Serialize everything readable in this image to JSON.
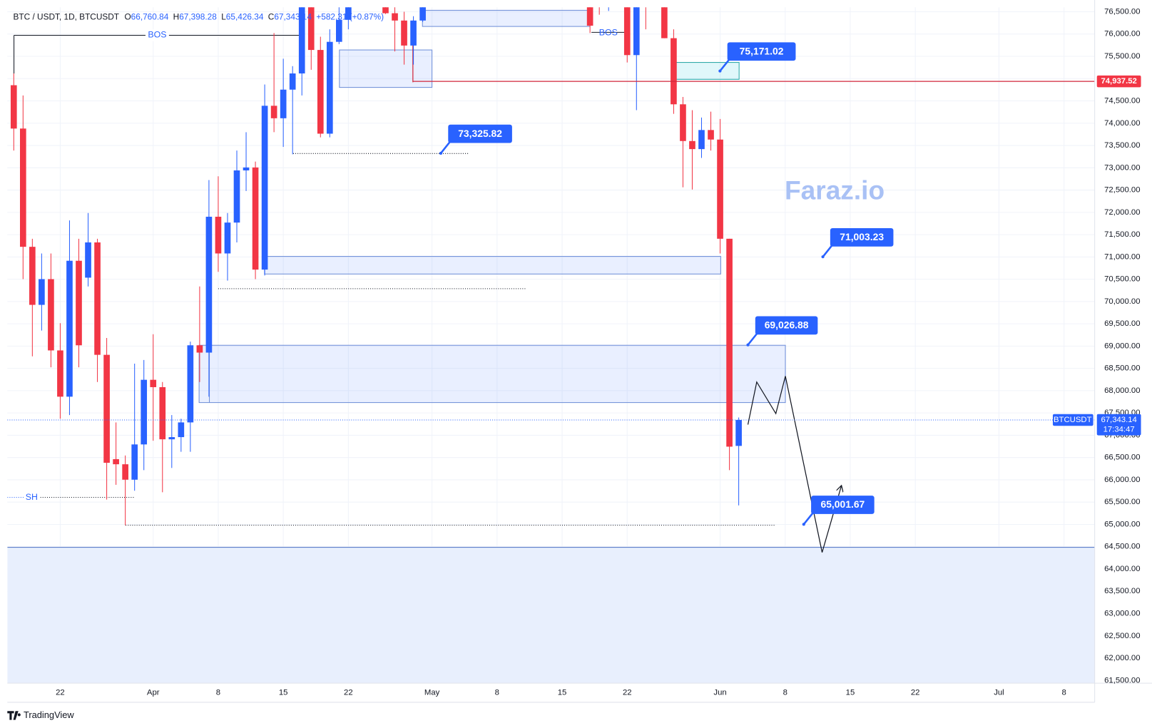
{
  "header": {
    "symbol": "BTC / USDT, 1D, BTCUSDT",
    "ohlc": [
      {
        "label": "O",
        "value": "66,760.84"
      },
      {
        "label": "H",
        "value": "67,398.28"
      },
      {
        "label": "L",
        "value": "65,426.34"
      },
      {
        "label": "C",
        "value": "67,343.14"
      }
    ],
    "change": "+582.31 (+0.87%)"
  },
  "chart_data": {
    "type": "candlestick",
    "x": [
      -5,
      -4,
      -3,
      -2,
      -1,
      0,
      1,
      2,
      3,
      4,
      5,
      6,
      7,
      8,
      9,
      10,
      11,
      12,
      13,
      14,
      15,
      16,
      17,
      18,
      19,
      20,
      21,
      22,
      23,
      24,
      25,
      26,
      27,
      28,
      29,
      30,
      31,
      35,
      36,
      37,
      38,
      39,
      57,
      58,
      59,
      61,
      62,
      63,
      65,
      66,
      67,
      68,
      69,
      70,
      71,
      72,
      73
    ],
    "open": [
      74852,
      73880,
      71227,
      69925,
      70502,
      68903,
      67865,
      70914,
      70535,
      71326,
      68804,
      66464,
      66349,
      66003,
      66794,
      68244,
      68079,
      66909,
      66958,
      67288,
      69018,
      68854,
      71902,
      71078,
      71771,
      72941,
      73007,
      70716,
      74391,
      74111,
      74753,
      75116,
      76900,
      75643,
      73765,
      75825,
      76319,
      77200,
      76467,
      76303,
      75742,
      76303,
      77000,
      77000,
      76700,
      76900,
      75528,
      76900,
      76900,
      75907,
      74424,
      73600,
      73419,
      73847,
      73633,
      71408,
      66760.84
    ],
    "high": [
      75116,
      74622,
      71408,
      71078,
      71078,
      69513,
      71820,
      71408,
      71985,
      71408,
      69183,
      67288,
      66546,
      68606,
      68689,
      69266,
      68194,
      67453,
      67370,
      69101,
      70337,
      72726,
      72809,
      71985,
      73386,
      73798,
      73138,
      74869,
      76022,
      75446,
      75281,
      77100,
      77000,
      75940,
      76105,
      76700,
      77000,
      77400,
      76700,
      76500,
      76400,
      77000,
      77200,
      77200,
      77200,
      77100,
      77100,
      77100,
      77100,
      76105,
      74589,
      74292,
      74127,
      74259,
      74094,
      71408,
      67398.28
    ],
    "low": [
      73386,
      70502,
      68771,
      69348,
      68524,
      67370,
      67453,
      68524,
      70337,
      68194,
      65558,
      65888,
      64981,
      65756,
      66217,
      66876,
      65722,
      66266,
      66629,
      66629,
      68194,
      67865,
      70666,
      70469,
      71326,
      72479,
      70502,
      70584,
      73798,
      73468,
      73303,
      74622,
      75198,
      73682,
      73682,
      75775,
      76105,
      76450,
      75610,
      75314,
      75314,
      76270,
      76022,
      76434,
      76517,
      75363,
      74292,
      76105,
      75907,
      74210,
      72562,
      72512,
      73221,
      73386,
      71078,
      66217,
      65426.34
    ],
    "close": [
      73880,
      71227,
      69925,
      70502,
      68903,
      67865,
      70914,
      69018,
      71326,
      68804,
      66382,
      66349,
      66003,
      66794,
      68244,
      68079,
      66909,
      66958,
      67288,
      69018,
      68854,
      71902,
      71078,
      71771,
      72941,
      73007,
      70716,
      74391,
      74111,
      74753,
      75116,
      76900,
      75643,
      73765,
      75825,
      76319,
      76800,
      76467,
      76303,
      75742,
      76303,
      76800,
      76187,
      76700,
      77000,
      75528,
      76900,
      76700,
      75907,
      74424,
      73600,
      73419,
      73847,
      73633,
      71408,
      66744,
      67343.14
    ],
    "colors": {
      "up": "#2962ff",
      "down": "#f23645"
    },
    "xlim": [
      -5.69,
      111.3
    ],
    "ylim": [
      61438,
      76599
    ],
    "xticks": [
      {
        "value": 0,
        "label": "22"
      },
      {
        "value": 10,
        "label": "Apr"
      },
      {
        "value": 17,
        "label": "8"
      },
      {
        "value": 24,
        "label": "15"
      },
      {
        "value": 31,
        "label": "22"
      },
      {
        "value": 40,
        "label": "May"
      },
      {
        "value": 47,
        "label": "8"
      },
      {
        "value": 54,
        "label": "15"
      },
      {
        "value": 61,
        "label": "22"
      },
      {
        "value": 71,
        "label": "Jun"
      },
      {
        "value": 78,
        "label": "8"
      },
      {
        "value": 85,
        "label": "15"
      },
      {
        "value": 92,
        "label": "22"
      },
      {
        "value": 101,
        "label": "Jul"
      },
      {
        "value": 108,
        "label": "8"
      }
    ],
    "yticks": [
      {
        "value": 61500,
        "label": "61,500.00"
      },
      {
        "value": 62000,
        "label": "62,000.00"
      },
      {
        "value": 62500,
        "label": "62,500.00"
      },
      {
        "value": 63000,
        "label": "63,000.00"
      },
      {
        "value": 63500,
        "label": "63,500.00"
      },
      {
        "value": 64000,
        "label": "64,000.00"
      },
      {
        "value": 64500,
        "label": "64,500.00"
      },
      {
        "value": 65000,
        "label": "65,000.00"
      },
      {
        "value": 65500,
        "label": "65,500.00"
      },
      {
        "value": 66000,
        "label": "66,000.00"
      },
      {
        "value": 66500,
        "label": "66,500.00"
      },
      {
        "value": 67000,
        "label": "67,000.00"
      },
      {
        "value": 67500,
        "label": "67,500.00"
      },
      {
        "value": 68000,
        "label": "68,000.00"
      },
      {
        "value": 68500,
        "label": "68,500.00"
      },
      {
        "value": 69000,
        "label": "69,000.00"
      },
      {
        "value": 69500,
        "label": "69,500.00"
      },
      {
        "value": 70000,
        "label": "70,000.00"
      },
      {
        "value": 70500,
        "label": "70,500.00"
      },
      {
        "value": 71000,
        "label": "71,000.00"
      },
      {
        "value": 71500,
        "label": "71,500.00"
      },
      {
        "value": 72000,
        "label": "72,000.00"
      },
      {
        "value": 72500,
        "label": "72,500.00"
      },
      {
        "value": 73000,
        "label": "73,000.00"
      },
      {
        "value": 73500,
        "label": "73,500.00"
      },
      {
        "value": 74000,
        "label": "74,000.00"
      },
      {
        "value": 74500,
        "label": "74,500.00"
      },
      {
        "value": 75000,
        "label": "75,000.00"
      },
      {
        "value": 75500,
        "label": "75,500.00"
      },
      {
        "value": 76000,
        "label": "76,000.00"
      },
      {
        "value": 76500,
        "label": "76,500.00"
      }
    ],
    "grid": true,
    "annotations": [
      {
        "value": 75171.02,
        "label": "75,171.02"
      },
      {
        "value": 73325.82,
        "label": "73,325.82"
      },
      {
        "value": 71003.23,
        "label": "71,003.23"
      },
      {
        "value": 69026.88,
        "label": "69,026.88"
      },
      {
        "value": 65001.67,
        "label": "65,001.67"
      }
    ],
    "price_line": {
      "value": 74937.52,
      "label": "74,937.52"
    },
    "last_price": {
      "label": "67,343.14",
      "timer": "17:34:47",
      "symbol": "BTCUSDT"
    },
    "markers": [
      "BOS",
      "BOS",
      "SH"
    ],
    "watermark": "Faraz.io"
  },
  "footer": {
    "brand": "TradingView"
  }
}
